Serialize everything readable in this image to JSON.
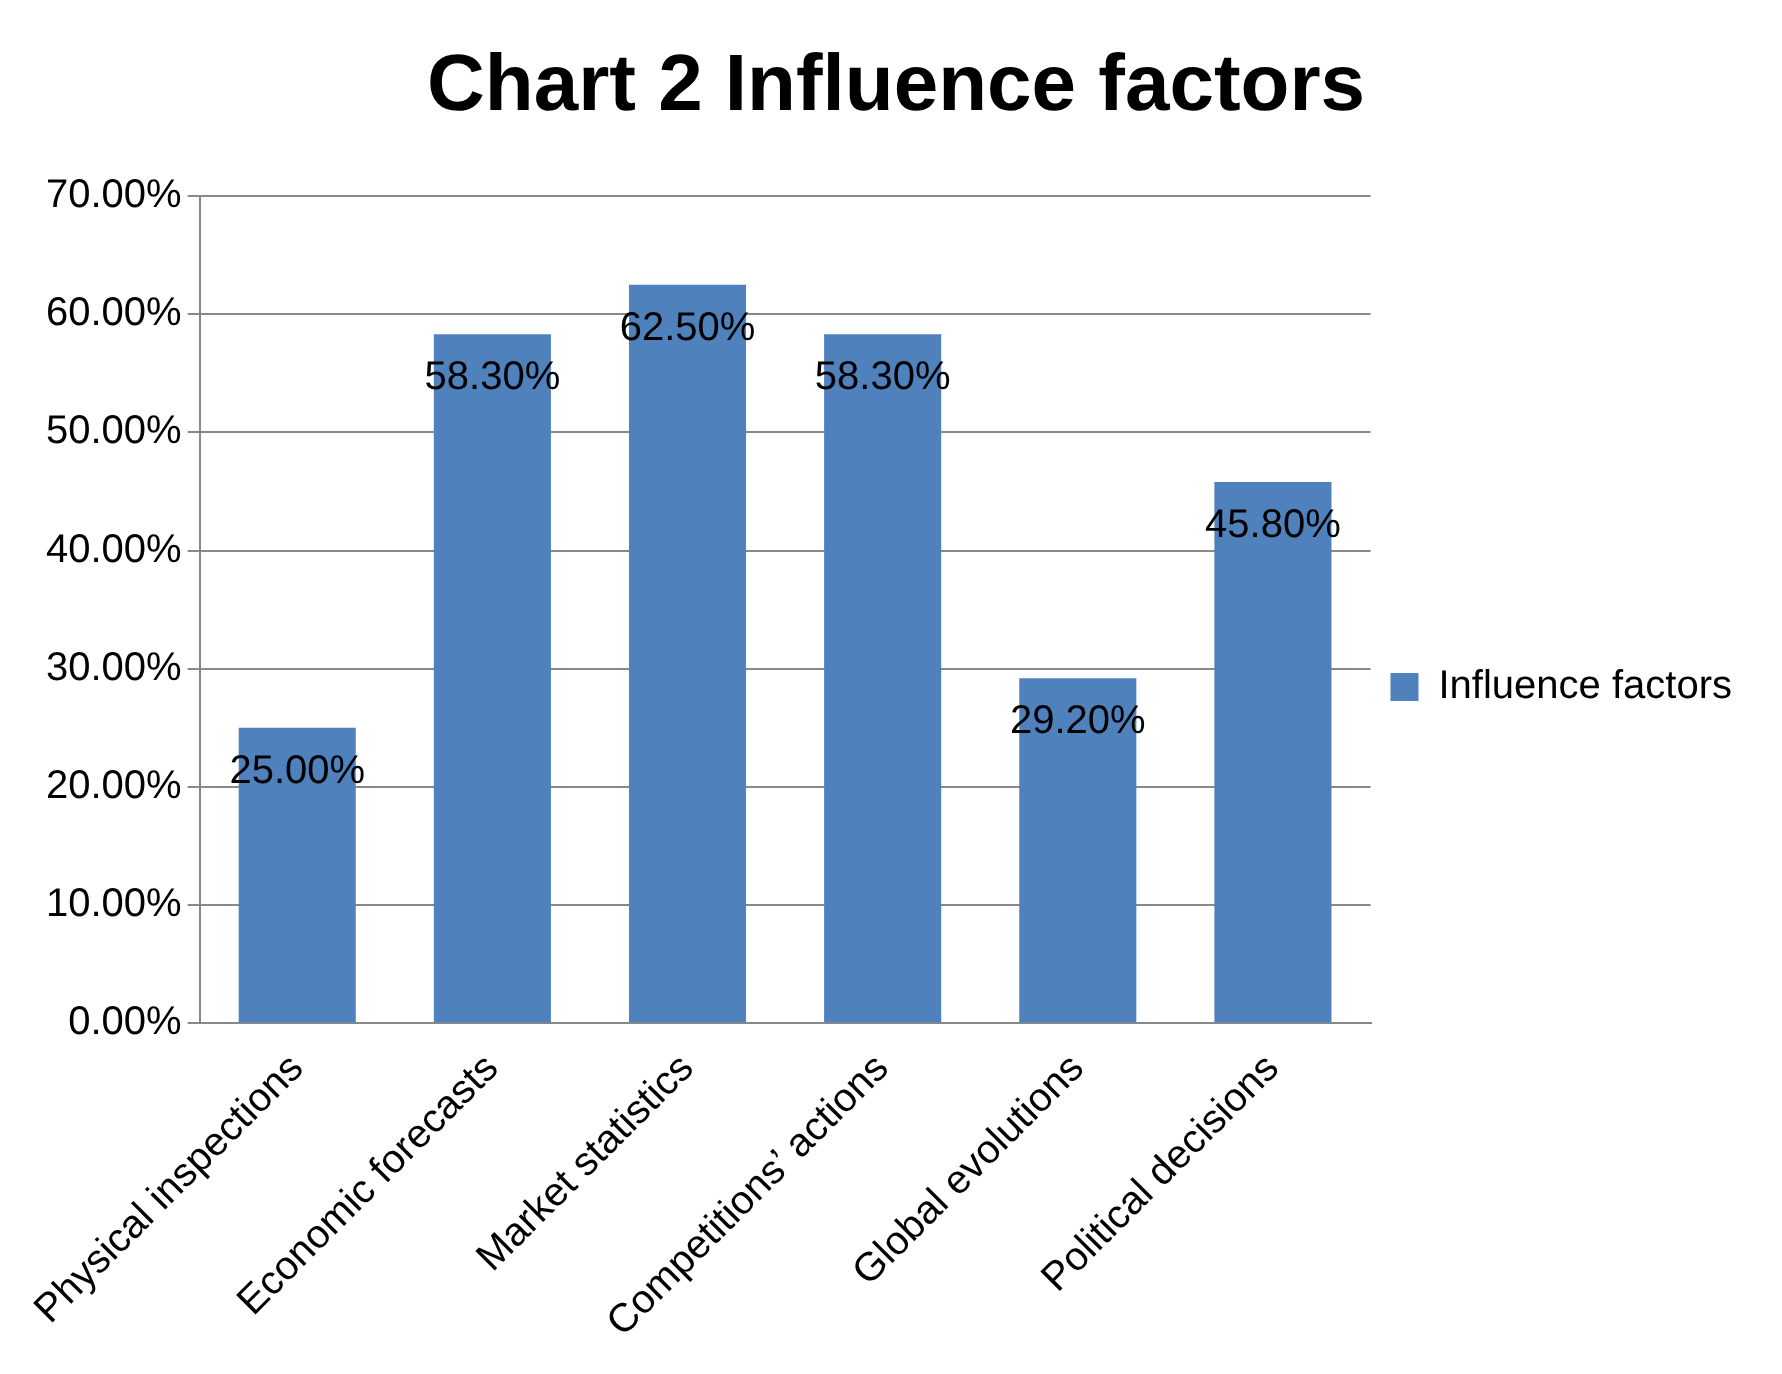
{
  "chart_data": {
    "type": "bar",
    "title": "Chart 2 Influence factors",
    "categories": [
      "Physical inspections",
      "Economic forecasts",
      "Market statistics",
      "Competitions’ actions",
      "Global evolutions",
      "Political decisions"
    ],
    "series": [
      {
        "name": "Influence factors",
        "color": "#4f81bd",
        "values": [
          25,
          58.3,
          62.5,
          58.3,
          29.2,
          45.8
        ],
        "value_labels": [
          "25.00%",
          "58.30%",
          "62.50%",
          "58.30%",
          "29.20%",
          "45.80%"
        ]
      }
    ],
    "ylim": [
      0,
      70
    ],
    "yticks": [
      {
        "value": 0,
        "label": "0.00%"
      },
      {
        "value": 10,
        "label": "10.00%"
      },
      {
        "value": 20,
        "label": "20.00%"
      },
      {
        "value": 30,
        "label": "30.00%"
      },
      {
        "value": 40,
        "label": "40.00%"
      },
      {
        "value": 50,
        "label": "50.00%"
      },
      {
        "value": 60,
        "label": "60.00%"
      },
      {
        "value": 70,
        "label": "70.00%"
      }
    ],
    "grid": "y",
    "legend": "right"
  }
}
